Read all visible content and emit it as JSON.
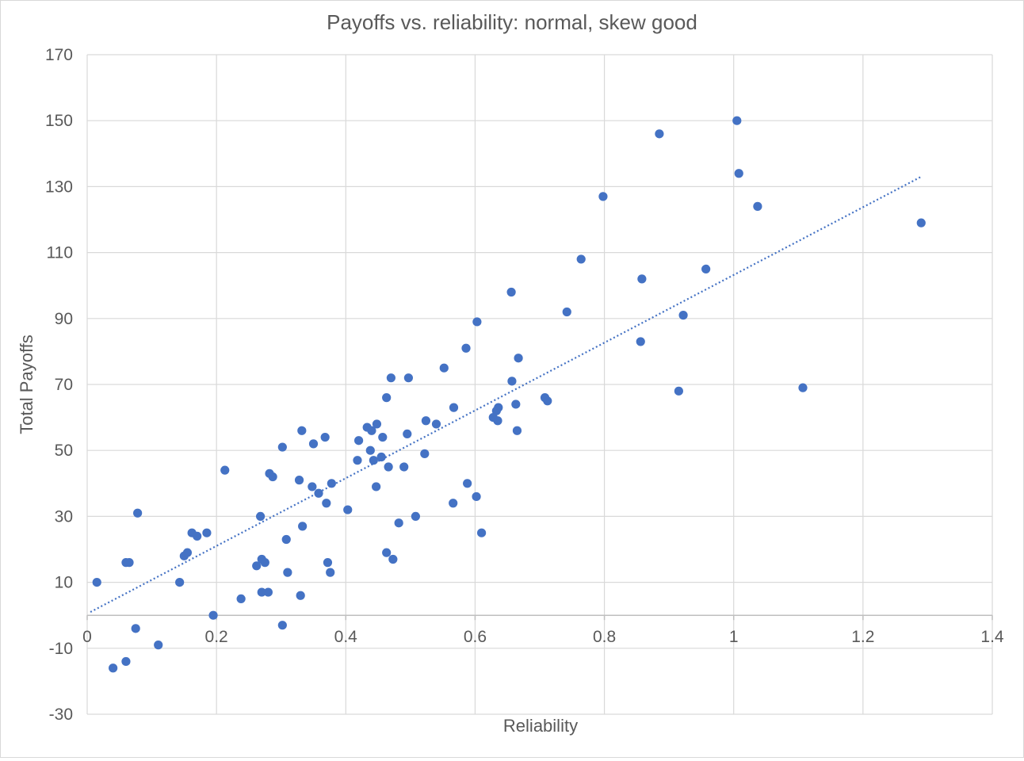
{
  "chart_data": {
    "type": "scatter",
    "title": "Payoffs vs. reliability: normal, skew good",
    "xlabel": "Reliability",
    "ylabel": "Total Payoffs",
    "xlim": [
      0,
      1.4
    ],
    "ylim": [
      -30,
      170
    ],
    "xticks": [
      0,
      0.2,
      0.4,
      0.6,
      0.8,
      1,
      1.2,
      1.4
    ],
    "xtick_labels": [
      "0",
      "0.2",
      "0.4",
      "0.6",
      "0.8",
      "1",
      "1.2",
      "1.4"
    ],
    "yticks": [
      -30,
      -10,
      10,
      30,
      50,
      70,
      90,
      110,
      130,
      150,
      170
    ],
    "ytick_labels": [
      "-30",
      "-10",
      "10",
      "30",
      "50",
      "70",
      "90",
      "110",
      "130",
      "150",
      "170"
    ],
    "grid": true,
    "legend": "none",
    "marker_color": "#4472C4",
    "trendline": {
      "type": "linear",
      "style": "dotted",
      "color": "#4472C4",
      "x": [
        0.005,
        1.29
      ],
      "y": [
        1,
        133
      ]
    },
    "series": [
      {
        "points": [
          [
            0.015,
            10
          ],
          [
            0.04,
            -16
          ],
          [
            0.06,
            -14
          ],
          [
            0.06,
            16
          ],
          [
            0.065,
            16
          ],
          [
            0.075,
            -4
          ],
          [
            0.078,
            31
          ],
          [
            0.11,
            -9
          ],
          [
            0.143,
            10
          ],
          [
            0.15,
            18
          ],
          [
            0.155,
            19
          ],
          [
            0.162,
            25
          ],
          [
            0.17,
            24
          ],
          [
            0.185,
            25
          ],
          [
            0.195,
            0
          ],
          [
            0.213,
            44
          ],
          [
            0.238,
            5
          ],
          [
            0.262,
            15
          ],
          [
            0.268,
            30
          ],
          [
            0.27,
            17
          ],
          [
            0.27,
            7
          ],
          [
            0.275,
            16
          ],
          [
            0.28,
            7
          ],
          [
            0.282,
            43
          ],
          [
            0.287,
            42
          ],
          [
            0.302,
            51
          ],
          [
            0.302,
            -3
          ],
          [
            0.308,
            23
          ],
          [
            0.31,
            13
          ],
          [
            0.328,
            41
          ],
          [
            0.33,
            6
          ],
          [
            0.332,
            56
          ],
          [
            0.333,
            27
          ],
          [
            0.348,
            39
          ],
          [
            0.35,
            52
          ],
          [
            0.358,
            37
          ],
          [
            0.368,
            54
          ],
          [
            0.37,
            34
          ],
          [
            0.372,
            16
          ],
          [
            0.376,
            13
          ],
          [
            0.378,
            40
          ],
          [
            0.403,
            32
          ],
          [
            0.418,
            47
          ],
          [
            0.42,
            53
          ],
          [
            0.433,
            57
          ],
          [
            0.438,
            50
          ],
          [
            0.44,
            56
          ],
          [
            0.443,
            47
          ],
          [
            0.447,
            39
          ],
          [
            0.448,
            58
          ],
          [
            0.455,
            48
          ],
          [
            0.457,
            54
          ],
          [
            0.463,
            66
          ],
          [
            0.463,
            19
          ],
          [
            0.466,
            45
          ],
          [
            0.47,
            72
          ],
          [
            0.473,
            17
          ],
          [
            0.482,
            28
          ],
          [
            0.49,
            45
          ],
          [
            0.495,
            55
          ],
          [
            0.497,
            72
          ],
          [
            0.508,
            30
          ],
          [
            0.522,
            49
          ],
          [
            0.524,
            59
          ],
          [
            0.54,
            58
          ],
          [
            0.552,
            75
          ],
          [
            0.566,
            34
          ],
          [
            0.567,
            63
          ],
          [
            0.586,
            81
          ],
          [
            0.588,
            40
          ],
          [
            0.602,
            36
          ],
          [
            0.603,
            89
          ],
          [
            0.61,
            25
          ],
          [
            0.628,
            60
          ],
          [
            0.633,
            62
          ],
          [
            0.635,
            59
          ],
          [
            0.636,
            63
          ],
          [
            0.656,
            98
          ],
          [
            0.657,
            71
          ],
          [
            0.663,
            64
          ],
          [
            0.665,
            56
          ],
          [
            0.667,
            78
          ],
          [
            0.708,
            66
          ],
          [
            0.712,
            65
          ],
          [
            0.742,
            92
          ],
          [
            0.764,
            108
          ],
          [
            0.798,
            127
          ],
          [
            0.856,
            83
          ],
          [
            0.858,
            102
          ],
          [
            0.885,
            146
          ],
          [
            0.915,
            68
          ],
          [
            0.922,
            91
          ],
          [
            0.957,
            105
          ],
          [
            1.005,
            150
          ],
          [
            1.008,
            134
          ],
          [
            1.037,
            124
          ],
          [
            1.107,
            69
          ],
          [
            1.29,
            119
          ]
        ]
      }
    ]
  }
}
